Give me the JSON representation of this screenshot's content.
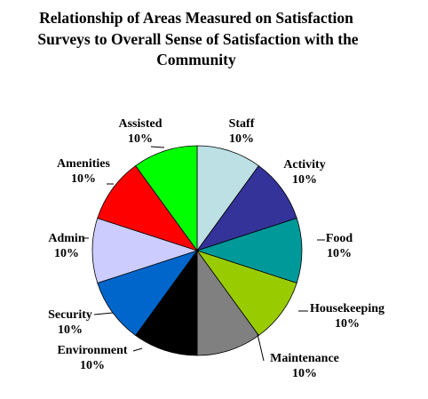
{
  "chart_data": {
    "type": "pie",
    "title_lines": [
      "Relationship of Areas Measured on Satisfaction",
      "Surveys to Overall Sense of Satisfaction with the",
      "Community"
    ],
    "slices": [
      {
        "label": "Staff",
        "value": 10,
        "value_label": "10%",
        "color": "#BCE0E4"
      },
      {
        "label": "Activity",
        "value": 10,
        "value_label": "10%",
        "color": "#333399"
      },
      {
        "label": "Food",
        "value": 10,
        "value_label": "10%",
        "color": "#009999"
      },
      {
        "label": "Housekeeping",
        "value": 10,
        "value_label": "10%",
        "color": "#99CC00"
      },
      {
        "label": "Maintenance",
        "value": 10,
        "value_label": "10%",
        "color": "#808080"
      },
      {
        "label": "Environment",
        "value": 10,
        "value_label": "10%",
        "color": "#000000"
      },
      {
        "label": "Security",
        "value": 10,
        "value_label": "10%",
        "color": "#0066CC"
      },
      {
        "label": "Admin",
        "value": 10,
        "value_label": "10%",
        "color": "#CCCCFF"
      },
      {
        "label": "Amenities",
        "value": 10,
        "value_label": "10%",
        "color": "#FF0000"
      },
      {
        "label": "Assisted",
        "value": 10,
        "value_label": "10%",
        "color": "#00FF00"
      }
    ],
    "start_angle": "12 o'clock",
    "direction": "clockwise",
    "legend": "none",
    "labels": "outside with leader lines"
  }
}
